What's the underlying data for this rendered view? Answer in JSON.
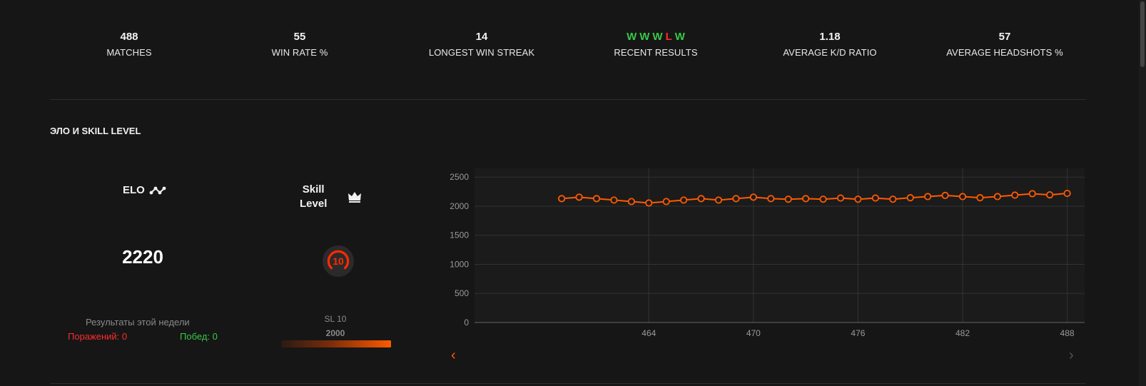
{
  "stats": [
    {
      "value": "488",
      "label": "MATCHES"
    },
    {
      "value": "55",
      "label": "WIN RATE %"
    },
    {
      "value": "14",
      "label": "LONGEST WIN STREAK"
    },
    {
      "value": "",
      "label": "RECENT RESULTS"
    },
    {
      "value": "1.18",
      "label": "AVERAGE K/D RATIO"
    },
    {
      "value": "57",
      "label": "AVERAGE HEADSHOTS %"
    }
  ],
  "recent_results": [
    "W",
    "W",
    "W",
    "L",
    "W"
  ],
  "colors": {
    "win": "#39c846",
    "loss": "#ff2b2b",
    "accent": "#ff5a00"
  },
  "section_title": "ЭЛО И SKILL LEVEL",
  "elo": {
    "label": "ELO",
    "value": "2220",
    "icon": "elo-graph-icon"
  },
  "skill": {
    "label_line1": "Skill",
    "label_line2": "Level",
    "icon": "crown-icon",
    "level": "10",
    "sl_label": "SL 10",
    "sl_value": "2000"
  },
  "weekly": {
    "title": "Результаты этой недели",
    "losses": "Поражений: 0",
    "wins": "Побед: 0"
  },
  "nav": {
    "prev": "‹",
    "next": "›"
  },
  "chart_data": {
    "type": "line",
    "x": [
      459,
      460,
      461,
      462,
      463,
      464,
      465,
      466,
      467,
      468,
      469,
      470,
      471,
      472,
      473,
      474,
      475,
      476,
      477,
      478,
      479,
      480,
      481,
      482,
      483,
      484,
      485,
      486,
      487,
      488
    ],
    "values": [
      2130,
      2155,
      2130,
      2105,
      2080,
      2055,
      2080,
      2105,
      2130,
      2105,
      2130,
      2155,
      2130,
      2120,
      2130,
      2120,
      2140,
      2120,
      2140,
      2120,
      2145,
      2165,
      2185,
      2165,
      2145,
      2165,
      2190,
      2215,
      2195,
      2220
    ],
    "xticks": [
      464,
      470,
      476,
      482,
      488
    ],
    "yticks": [
      0,
      500,
      1000,
      1500,
      2000,
      2500
    ],
    "xlim": [
      454,
      489
    ],
    "ylim": [
      0,
      2650
    ],
    "grid": true,
    "line_color": "#ff5a00"
  }
}
